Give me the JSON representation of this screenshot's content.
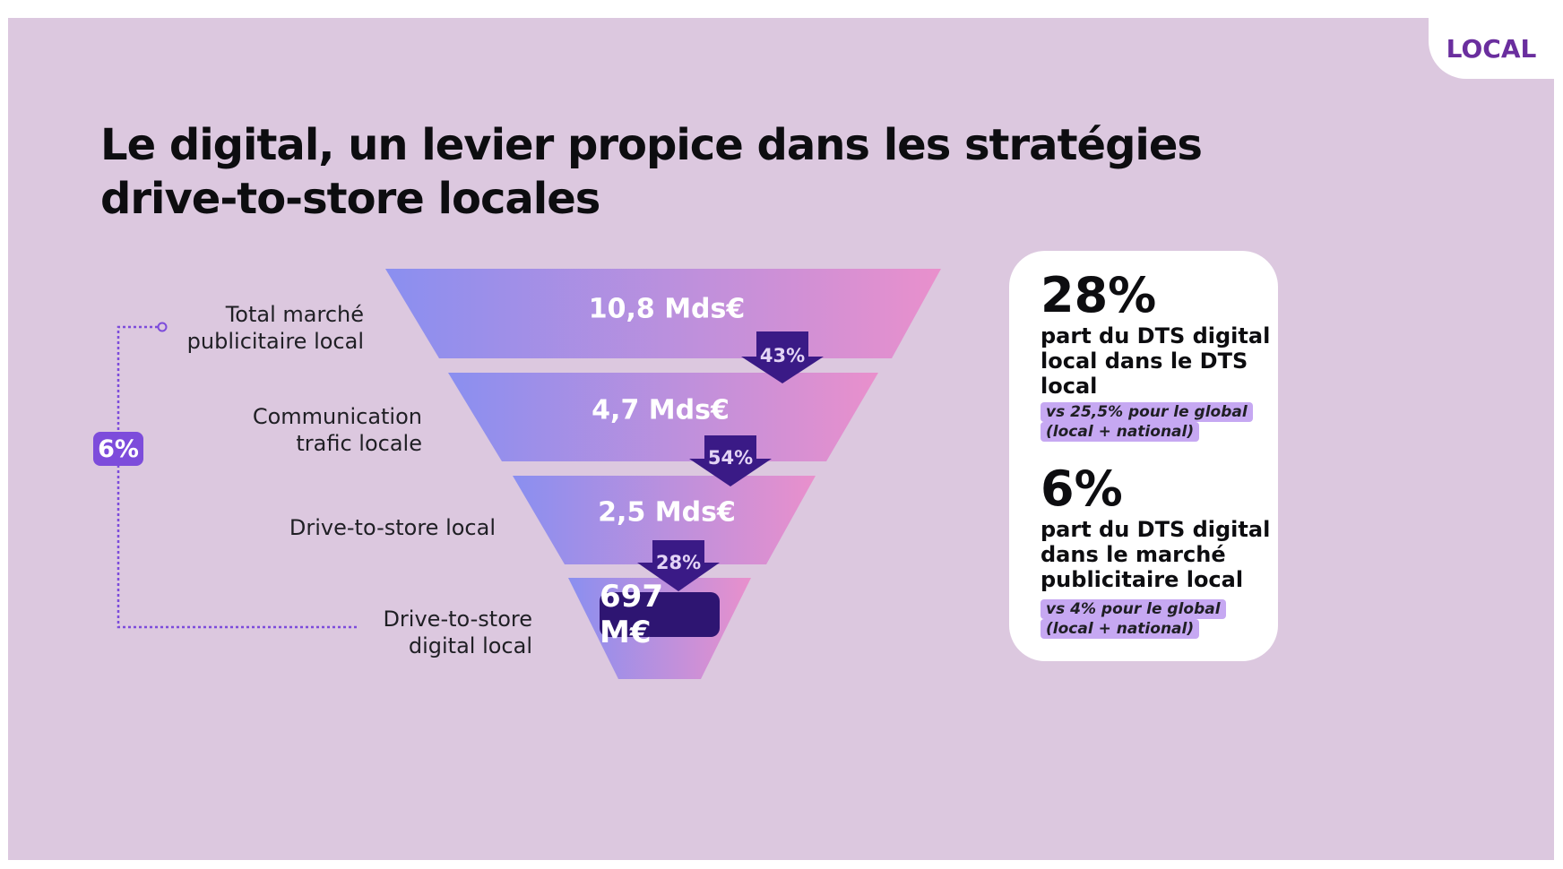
{
  "badge": "LOCAL",
  "title": {
    "line1": "Le digital, un levier propice dans les stratégies",
    "line2": "drive-to-store locales"
  },
  "colors": {
    "background": "#dcc8df",
    "funnel_gradient_start": "#8a8ff0",
    "funnel_gradient_end": "#e990cc",
    "arrow": "#3a1a86",
    "accent": "#7d4cdb",
    "badge_text": "#6a2e9e",
    "highlight": "#c6a8f2"
  },
  "chart_data": {
    "type": "funnel",
    "stages": [
      {
        "label_lines": [
          "Total marché",
          "publicitaire local"
        ],
        "value": 10.8,
        "value_label": "10,8 Mds€"
      },
      {
        "label_lines": [
          "Communication",
          "trafic locale"
        ],
        "value": 4.7,
        "value_label": "4,7 Mds€"
      },
      {
        "label_lines": [
          "Drive-to-store local"
        ],
        "value": 2.5,
        "value_label": "2,5 Mds€"
      },
      {
        "label_lines": [
          "Drive-to-store",
          "digital local"
        ],
        "value": 0.697,
        "value_label": "697 M€"
      }
    ],
    "conversions": [
      "43%",
      "54%",
      "28%"
    ],
    "overall_conversion": "6%"
  },
  "stats": [
    {
      "big": "28%",
      "desc_lines": [
        "part du DTS digital",
        "local dans le DTS",
        "local"
      ],
      "note_lines": [
        "vs 25,5% pour le global",
        "(local + national)"
      ]
    },
    {
      "big": "6%",
      "desc_lines": [
        "part du DTS digital",
        "dans le marché",
        "publicitaire local"
      ],
      "note_lines": [
        "vs 4% pour le global",
        "(local + national)"
      ]
    }
  ]
}
